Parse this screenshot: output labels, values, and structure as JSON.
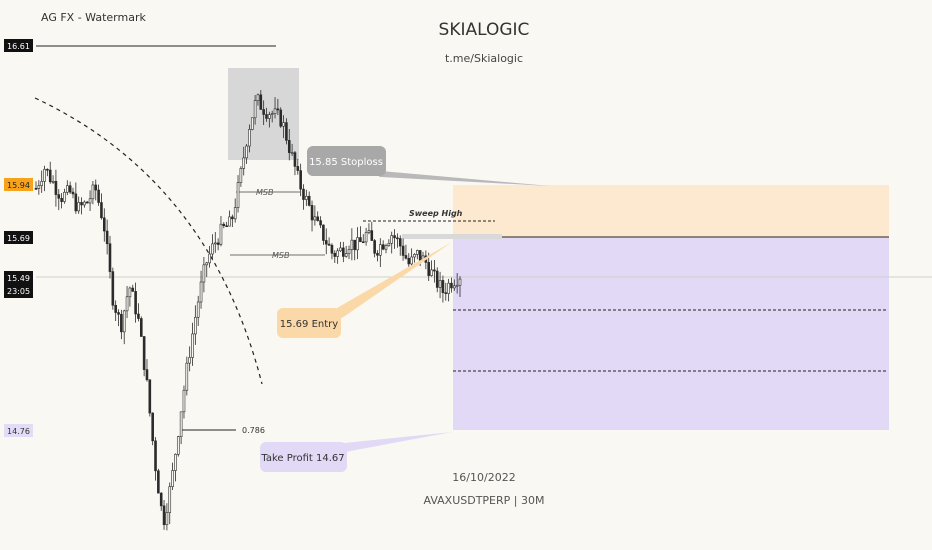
{
  "header": {
    "watermark_label": "AG FX - Watermark",
    "brand_title": "SKIALOGIC",
    "brand_link": "t.me/Skialogic",
    "date": "16/10/2022",
    "symbol_line": "AVAXUSDTPERP | 30M"
  },
  "price_axis": {
    "labels": [
      {
        "text": "16.61",
        "price": 16.61,
        "style": "dark"
      },
      {
        "text": "15.94",
        "price": 15.94,
        "style": "orange"
      },
      {
        "text": "15.69",
        "price": 15.69,
        "style": "dark"
      },
      {
        "text": "15.49",
        "price": 15.49,
        "style": "dark"
      },
      {
        "text": "14.76",
        "price": 14.76,
        "style": "lavender"
      }
    ],
    "countdown": "23:05"
  },
  "annotations": {
    "stoploss_label": "15.85 Stoploss",
    "entry_label": "15.69 Entry",
    "take_profit_label": "Take Profit 14.67",
    "sweep_high_label": "Sweep High",
    "msb_label_1": "MSB",
    "msb_label_2": "MSB",
    "fib_label": "0.786"
  },
  "colors": {
    "background": "#faf8f2",
    "candle": "#2b2b2b",
    "stop_zone": "#fde9cf",
    "target_zone": "#e1d9f6",
    "stoploss_bubble": "#a8a8a8",
    "entry_bubble": "#fbd8a8",
    "take_profit_bubble": "#e1d9f6",
    "orange_price_tag": "#f7a21b",
    "lavender_price_tag": "#e2dcf7"
  },
  "chart_data": {
    "type": "candlestick",
    "symbol": "AVAXUSDTPERP",
    "timeframe": "30M",
    "date": "16/10/2022",
    "price_levels": {
      "high_line": 16.61,
      "stoploss": 15.85,
      "entry": 15.69,
      "current": 15.49,
      "fib_0_786": 14.76,
      "take_profit": 14.67
    },
    "close_path": [
      15.92,
      16.02,
      15.95,
      15.88,
      15.9,
      15.82,
      15.85,
      15.92,
      15.75,
      15.4,
      15.25,
      15.45,
      15.3,
      15.0,
      14.6,
      14.3,
      14.5,
      14.82,
      15.1,
      15.35,
      15.55,
      15.65,
      15.72,
      15.75,
      15.95,
      16.2,
      16.35,
      16.3,
      16.28,
      16.25,
      16.1,
      15.95,
      15.85,
      15.75,
      15.68,
      15.6,
      15.62,
      15.66,
      15.64,
      15.7,
      15.62,
      15.66,
      15.7,
      15.64,
      15.55,
      15.6,
      15.56,
      15.48,
      15.42,
      15.47,
      15.5
    ]
  }
}
